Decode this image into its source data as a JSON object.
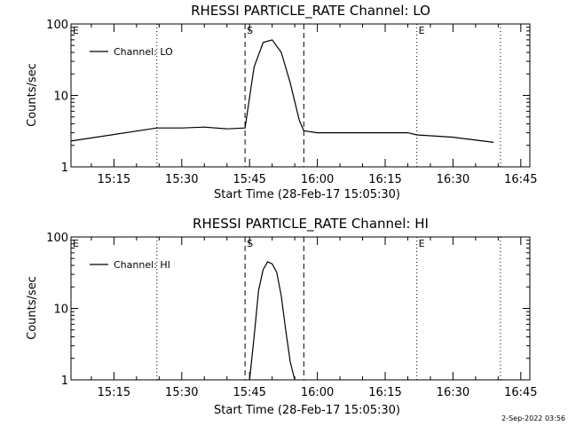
{
  "chart_data": [
    {
      "type": "line",
      "title": "RHESSI PARTICLE_RATE Channel: LO",
      "xlabel": "Start Time (28-Feb-17 15:05:30)",
      "ylabel": "Counts/sec",
      "yscale": "log",
      "ylim": [
        1,
        100
      ],
      "yticks": [
        "1",
        "10",
        "100"
      ],
      "xlim": [
        "15:05:30",
        "16:47:00"
      ],
      "xticks": [
        "15:15",
        "15:30",
        "15:45",
        "16:00",
        "16:15",
        "16:30",
        "16:45"
      ],
      "legend": {
        "placement": "top-left",
        "entries": [
          "Channel: LO"
        ]
      },
      "markers": [
        {
          "label": "E",
          "time": "15:05:30",
          "style": "dotted"
        },
        {
          "label": "",
          "time": "15:24:30",
          "style": "dotted"
        },
        {
          "label": "S",
          "time": "15:44:00",
          "style": "dashed"
        },
        {
          "label": "",
          "time": "15:57:00",
          "style": "dashed"
        },
        {
          "label": "E",
          "time": "16:22:00",
          "style": "dotted"
        },
        {
          "label": "",
          "time": "16:40:30",
          "style": "dotted"
        }
      ],
      "series": [
        {
          "name": "Channel: LO",
          "x": [
            "15:05:30",
            "15:24:30",
            "15:30",
            "15:35",
            "15:40",
            "15:44",
            "15:46",
            "15:48",
            "15:50",
            "15:52",
            "15:54",
            "15:56",
            "15:57",
            "16:00",
            "16:10",
            "16:20",
            "16:22",
            "16:30",
            "16:39"
          ],
          "y": [
            2.3,
            3.5,
            3.5,
            3.6,
            3.4,
            3.5,
            25,
            55,
            60,
            40,
            15,
            4.5,
            3.2,
            3.0,
            3.0,
            3.0,
            2.8,
            2.6,
            2.2
          ]
        }
      ]
    },
    {
      "type": "line",
      "title": "RHESSI PARTICLE_RATE Channel: HI",
      "xlabel": "Start Time (28-Feb-17 15:05:30)",
      "ylabel": "Counts/sec",
      "yscale": "log",
      "ylim": [
        1,
        100
      ],
      "yticks": [
        "1",
        "10",
        "100"
      ],
      "xlim": [
        "15:05:30",
        "16:47:00"
      ],
      "xticks": [
        "15:15",
        "15:30",
        "15:45",
        "16:00",
        "16:15",
        "16:30",
        "16:45"
      ],
      "legend": {
        "placement": "top-left",
        "entries": [
          "Channel: HI"
        ]
      },
      "markers": [
        {
          "label": "E",
          "time": "15:05:30",
          "style": "dotted"
        },
        {
          "label": "",
          "time": "15:24:30",
          "style": "dotted"
        },
        {
          "label": "S",
          "time": "15:44:00",
          "style": "dashed"
        },
        {
          "label": "",
          "time": "15:57:00",
          "style": "dashed"
        },
        {
          "label": "E",
          "time": "16:22:00",
          "style": "dotted"
        },
        {
          "label": "",
          "time": "16:40:30",
          "style": "dotted"
        }
      ],
      "series": [
        {
          "name": "Channel: HI",
          "x": [
            "15:45",
            "15:46",
            "15:47",
            "15:48",
            "15:49",
            "15:50",
            "15:51",
            "15:52",
            "15:53",
            "15:54",
            "15:55"
          ],
          "y": [
            1,
            4,
            18,
            35,
            45,
            42,
            32,
            15,
            5,
            1.8,
            1
          ]
        }
      ]
    }
  ],
  "footer": {
    "timestamp": "2-Sep-2022 03:56"
  }
}
